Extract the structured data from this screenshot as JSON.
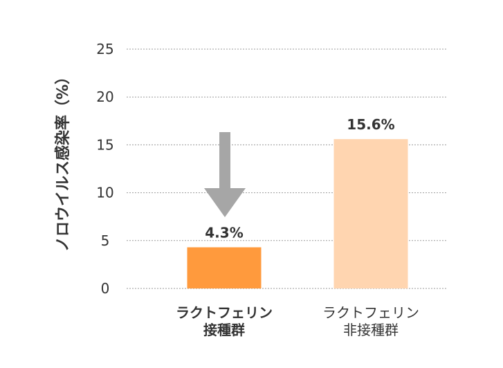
{
  "chart_data": {
    "type": "bar",
    "ylabel": "ノロウイルス感染率（%）",
    "ylim": [
      0,
      25
    ],
    "yticks": [
      0,
      5,
      10,
      15,
      20,
      25
    ],
    "grid": true,
    "categories": [
      {
        "line1": "ラクトフェリン",
        "line2": "接種群"
      },
      {
        "line1": "ラクトフェリン",
        "line2": "非接種群"
      }
    ],
    "values": [
      4.3,
      15.6
    ],
    "value_labels": [
      "4.3%",
      "15.6%"
    ],
    "colors": [
      "#ff9a3d",
      "#ffd5b0"
    ],
    "annotation": "down-arrow-icon"
  }
}
